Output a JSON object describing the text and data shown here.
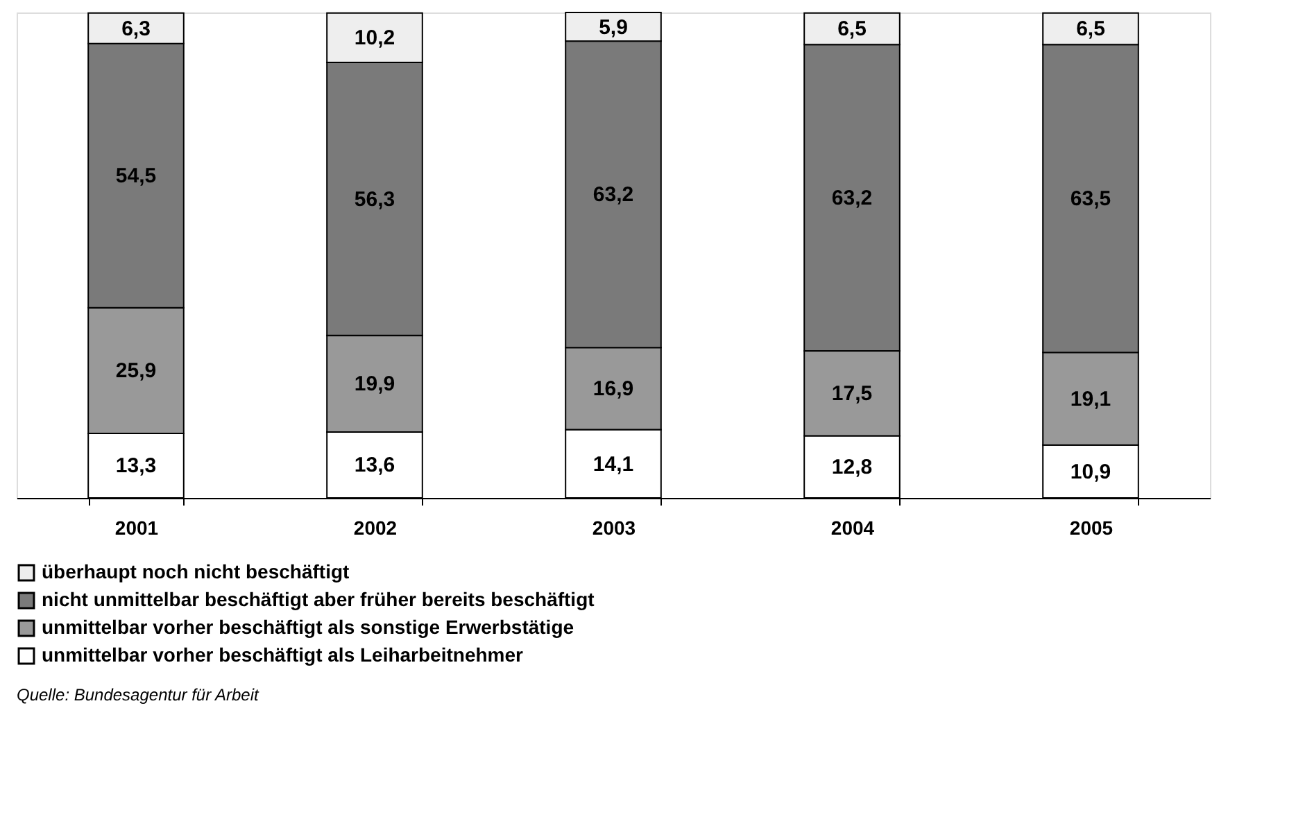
{
  "chart_data": {
    "type": "bar",
    "stacked": true,
    "legend": "bottom",
    "categories": [
      "2001",
      "2002",
      "2003",
      "2004",
      "2005"
    ],
    "series": [
      {
        "name": "unmittelbar vorher beschäftigt als Leiharbeitnehmer",
        "color": "#ffffff",
        "values": [
          13.3,
          13.6,
          14.1,
          12.8,
          10.9
        ],
        "value_labels": [
          "13,3",
          "13,6",
          "14,1",
          "12,8",
          "10,9"
        ]
      },
      {
        "name": "unmittelbar vorher beschäftigt als sonstige Erwerbstätige",
        "color": "#999999",
        "values": [
          25.9,
          19.9,
          16.9,
          17.5,
          19.1
        ],
        "value_labels": [
          "25,9",
          "19,9",
          "16,9",
          "17,5",
          "19,1"
        ]
      },
      {
        "name": "nicht unmittelbar beschäftigt aber früher bereits beschäftigt",
        "color": "#7a7a7a",
        "values": [
          54.5,
          56.3,
          63.2,
          63.2,
          63.5
        ],
        "value_labels": [
          "54,5",
          "56,3",
          "63,2",
          "63,2",
          "63,5"
        ]
      },
      {
        "name": "überhaupt noch nicht beschäftigt",
        "color": "#eeeeee",
        "values": [
          6.3,
          10.2,
          5.9,
          6.5,
          6.5
        ],
        "value_labels": [
          "6,3",
          "10,2",
          "5,9",
          "6,5",
          "6,5"
        ]
      }
    ],
    "annotations": [
      "Quelle: Bundesagentur für Arbeit"
    ]
  }
}
